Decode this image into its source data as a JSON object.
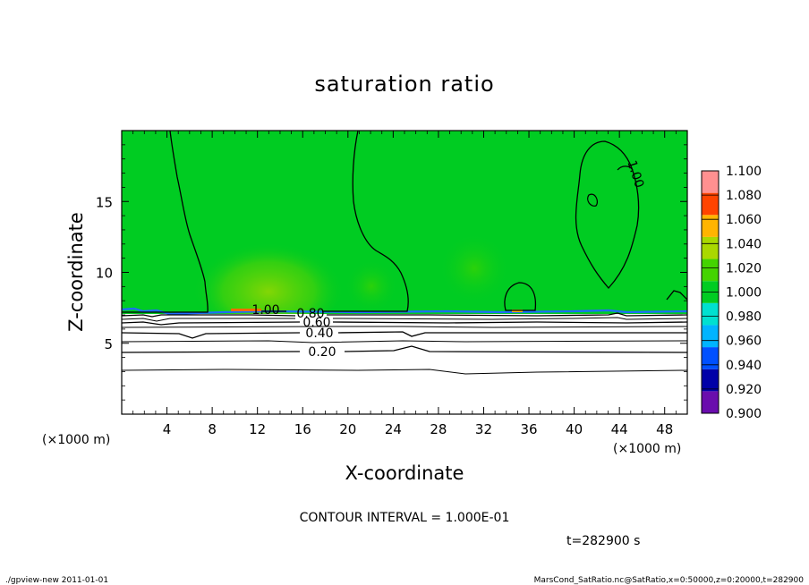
{
  "chart_data": {
    "type": "heatmap",
    "title": "saturation ratio",
    "xlabel": "X-coordinate",
    "ylabel": "Z-coordinate",
    "x_unit": "(×1000 m)",
    "z_unit": "(×1000 m)",
    "xlim": [
      0,
      50
    ],
    "ylim": [
      0,
      20
    ],
    "x_ticks": [
      4,
      8,
      12,
      16,
      20,
      24,
      28,
      32,
      36,
      40,
      44,
      48
    ],
    "y_ticks": [
      5,
      10,
      15
    ],
    "colorbar": {
      "levels": [
        "0.900",
        "0.920",
        "0.940",
        "0.960",
        "0.980",
        "1.000",
        "1.020",
        "1.040",
        "1.060",
        "1.080",
        "1.100"
      ],
      "colors": [
        "#6a0dad",
        "#0000a8",
        "#0050ff",
        "#00b4ff",
        "#00e0d0",
        "#00cc22",
        "#44d400",
        "#aad800",
        "#ffb400",
        "#ff4400",
        "#ff9090"
      ]
    },
    "contour_levels": [
      0.2,
      0.4,
      0.6,
      0.8,
      1.0
    ],
    "contour_labels": [
      "0.20",
      "0.40",
      "0.60",
      "0.80",
      "1.00",
      "1.00"
    ],
    "contour_interval": "CONTOUR INTERVAL = 1.000E-01",
    "time": "t=282900 s"
  },
  "footer": {
    "left": "./gpview-new   2011-01-01",
    "right": "MarsCond_SatRatio.nc@SatRatio,x=0:50000,z=0:20000,t=282900"
  }
}
